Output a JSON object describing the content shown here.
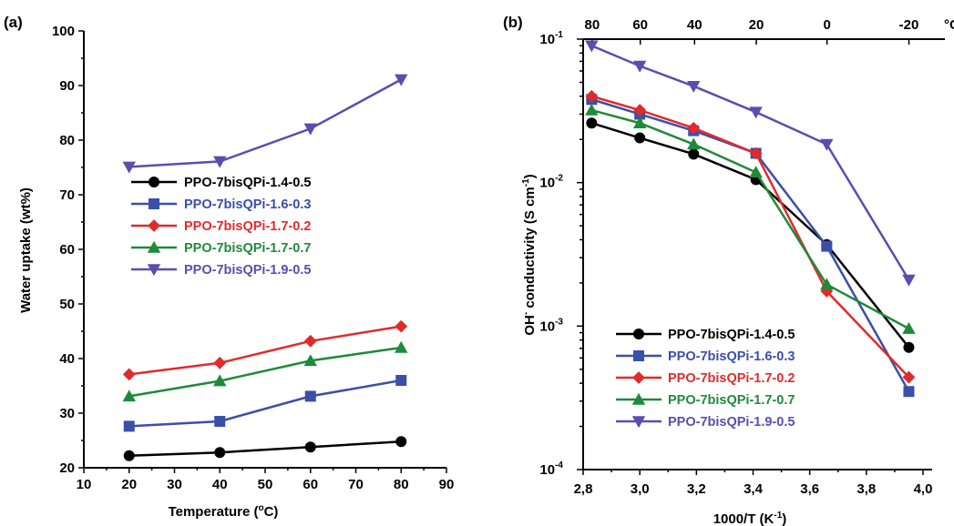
{
  "chart_data": [
    {
      "panel_label": "(a)",
      "type": "line",
      "xlabel": "Temperature (",
      "xlabel_sup": "o",
      "xlabel_tail": "C)",
      "ylabel": "Water uptake (wt%)",
      "xlim": [
        10,
        90
      ],
      "ylim": [
        20,
        100
      ],
      "xticks": [
        "10",
        "20",
        "30",
        "40",
        "50",
        "60",
        "70",
        "80",
        "90"
      ],
      "yticks": [
        "20",
        "30",
        "40",
        "50",
        "60",
        "70",
        "80",
        "90",
        "100"
      ],
      "x": [
        20,
        40,
        60,
        80
      ],
      "legend_position": "middle-left",
      "series": [
        {
          "name": "PPO-7bisQPi-1.4-0.5",
          "color": "#000000",
          "marker": "circle",
          "values": [
            22.2,
            22.8,
            23.8,
            24.8
          ]
        },
        {
          "name": "PPO-7bisQPi-1.6-0.3",
          "color": "#3b4fa8",
          "marker": "square",
          "values": [
            27.6,
            28.5,
            33.1,
            36.0
          ]
        },
        {
          "name": "PPO-7bisQPi-1.7-0.2",
          "color": "#e02b2b",
          "marker": "diamond",
          "values": [
            37.1,
            39.2,
            43.2,
            45.9
          ]
        },
        {
          "name": "PPO-7bisQPi-1.7-0.7",
          "color": "#1f8a3a",
          "marker": "triangle-up",
          "values": [
            33.1,
            35.9,
            39.6,
            42.0
          ]
        },
        {
          "name": "PPO-7bisQPi-1.9-0.5",
          "color": "#5b4db0",
          "marker": "triangle-down",
          "values": [
            75.1,
            76.1,
            82.1,
            91.1
          ]
        }
      ]
    },
    {
      "panel_label": "(b)",
      "type": "line",
      "xlabel": "1000/T (K",
      "xlabel_sup": "-1",
      "xlabel_tail": ")",
      "ylabel_pre": "OH",
      "ylabel_sup1": "-",
      "ylabel_mid": " conductivity (S cm",
      "ylabel_sup2": "-1",
      "ylabel_tail": ")",
      "xlim": [
        2.8,
        4.0
      ],
      "ylim": [
        0.0001,
        0.1
      ],
      "yscale": "log",
      "xticks": [
        "2,8",
        "3,0",
        "3,2",
        "3,4",
        "3,6",
        "3,8",
        "4,0"
      ],
      "yticks": [
        {
          "base": "10",
          "exp": "-4"
        },
        {
          "base": "10",
          "exp": "-3"
        },
        {
          "base": "10",
          "exp": "-2"
        },
        {
          "base": "10",
          "exp": "-1"
        }
      ],
      "top_axis_ticks": [
        "80",
        "60",
        "40",
        "20",
        "0",
        "-20"
      ],
      "top_axis_unit": "°C",
      "x": [
        2.83,
        3.0,
        3.19,
        3.41,
        3.66,
        3.95
      ],
      "legend_position": "bottom-left",
      "series": [
        {
          "name": "PPO-7bisQPi-1.4-0.5",
          "color": "#000000",
          "marker": "circle",
          "values": [
            0.026,
            0.0205,
            0.0158,
            0.0105,
            0.0037,
            0.00071
          ]
        },
        {
          "name": "PPO-7bisQPi-1.6-0.3",
          "color": "#3b4fa8",
          "marker": "square",
          "values": [
            0.038,
            0.03,
            0.023,
            0.016,
            0.0036,
            0.00035
          ]
        },
        {
          "name": "PPO-7bisQPi-1.7-0.2",
          "color": "#e02b2b",
          "marker": "diamond",
          "values": [
            0.04,
            0.032,
            0.024,
            0.016,
            0.00175,
            0.00044
          ]
        },
        {
          "name": "PPO-7bisQPi-1.7-0.7",
          "color": "#1f8a3a",
          "marker": "triangle-up",
          "values": [
            0.032,
            0.026,
            0.0185,
            0.0118,
            0.00195,
            0.00096
          ]
        },
        {
          "name": "PPO-7bisQPi-1.9-0.5",
          "color": "#5b4db0",
          "marker": "triangle-down",
          "values": [
            0.09,
            0.065,
            0.047,
            0.031,
            0.0185,
            0.0021
          ]
        }
      ]
    }
  ]
}
